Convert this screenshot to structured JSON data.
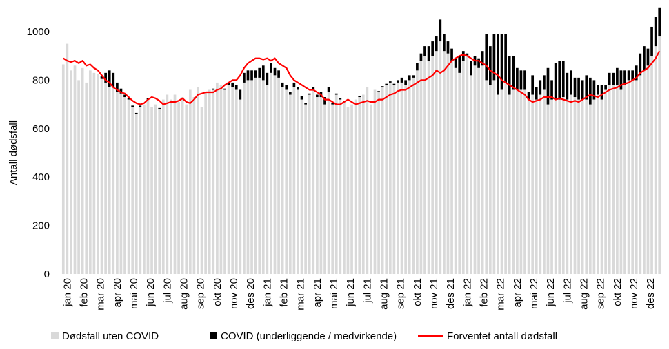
{
  "chart_data": {
    "type": "bar",
    "stacked": true,
    "title": "",
    "xlabel": "",
    "ylabel": "Antall dødsfall",
    "ylim": [
      0,
      1000
    ],
    "yticks": [
      0,
      200,
      400,
      600,
      800,
      1000
    ],
    "grid": false,
    "legend_placement": "bottom",
    "x_tick_labels": [
      "jan 20",
      "feb 20",
      "mar 20",
      "apr 20",
      "mai 20",
      "jun 20",
      "jul 20",
      "aug 20",
      "sep 20",
      "okt 20",
      "nov 20",
      "des 20",
      "jan 21",
      "feb 21",
      "mar 21",
      "apr 21",
      "mai 21",
      "jun 21",
      "jul 21",
      "aug 21",
      "sep 21",
      "okt 21",
      "nov 21",
      "des 21",
      "jan 22",
      "feb 22",
      "mar 22",
      "apr 22",
      "mai 22",
      "jun 22",
      "jul 22",
      "aug 22",
      "sep 22",
      "okt 22",
      "nov 22",
      "des 22"
    ],
    "series": [
      {
        "name": "Dødsfall uten COVID",
        "type": "bar",
        "color": "#d9d9d9",
        "values": [
          865,
          950,
          840,
          860,
          800,
          850,
          790,
          840,
          830,
          825,
          805,
          790,
          770,
          770,
          750,
          745,
          730,
          720,
          690,
          660,
          690,
          700,
          720,
          690,
          700,
          680,
          720,
          740,
          720,
          740,
          710,
          730,
          700,
          760,
          730,
          770,
          690,
          750,
          760,
          760,
          790,
          780,
          760,
          780,
          770,
          760,
          720,
          790,
          800,
          800,
          810,
          810,
          800,
          780,
          830,
          820,
          810,
          770,
          760,
          740,
          770,
          760,
          720,
          700,
          740,
          760,
          730,
          730,
          700,
          750,
          700,
          740,
          720,
          710,
          690,
          700,
          720,
          730,
          740,
          770,
          700,
          760,
          750,
          770,
          780,
          790,
          780,
          790,
          790,
          780,
          800,
          810,
          840,
          880,
          900,
          880,
          900,
          920,
          960,
          920,
          910,
          880,
          850,
          830,
          880,
          900,
          820,
          860,
          850,
          860,
          800,
          780,
          800,
          740,
          760,
          790,
          740,
          760,
          760,
          760,
          760,
          720,
          740,
          720,
          740,
          760,
          700,
          720,
          720,
          720,
          730,
          720,
          740,
          730,
          720,
          720,
          720,
          700,
          720,
          740,
          720,
          760,
          780,
          780,
          780,
          760,
          780,
          800,
          800,
          800,
          820,
          840,
          860,
          900,
          940,
          980
        ]
      },
      {
        "name": "COVID (underliggende / medvirkende)",
        "type": "bar",
        "color": "#000000",
        "values": [
          0,
          0,
          0,
          0,
          0,
          0,
          0,
          0,
          0,
          0,
          10,
          40,
          70,
          60,
          40,
          20,
          10,
          5,
          5,
          5,
          5,
          0,
          5,
          0,
          0,
          5,
          0,
          0,
          0,
          0,
          0,
          0,
          0,
          0,
          0,
          0,
          0,
          0,
          0,
          5,
          0,
          0,
          5,
          10,
          20,
          20,
          40,
          40,
          40,
          40,
          30,
          40,
          60,
          50,
          40,
          30,
          30,
          20,
          20,
          10,
          20,
          10,
          15,
          5,
          5,
          10,
          10,
          20,
          30,
          20,
          5,
          5,
          5,
          5,
          0,
          0,
          0,
          5,
          0,
          0,
          0,
          0,
          5,
          5,
          5,
          5,
          5,
          10,
          20,
          20,
          20,
          10,
          30,
          30,
          40,
          60,
          60,
          60,
          90,
          70,
          50,
          50,
          40,
          70,
          40,
          10,
          60,
          40,
          40,
          60,
          190,
          160,
          190,
          250,
          230,
          200,
          160,
          140,
          90,
          80,
          80,
          30,
          80,
          50,
          60,
          60,
          150,
          80,
          150,
          160,
          150,
          110,
          100,
          80,
          90,
          80,
          100,
          110,
          80,
          40,
          60,
          20,
          50,
          50,
          70,
          80,
          60,
          40,
          40,
          60,
          90,
          100,
          70,
          120,
          120,
          120
        ]
      },
      {
        "name": "Forventet antall dødsfall",
        "type": "line",
        "color": "#ff0000",
        "values": [
          890,
          880,
          875,
          880,
          870,
          880,
          860,
          865,
          850,
          840,
          820,
          800,
          790,
          770,
          760,
          750,
          745,
          730,
          715,
          705,
          700,
          705,
          720,
          730,
          725,
          715,
          700,
          705,
          710,
          710,
          715,
          725,
          710,
          705,
          720,
          740,
          745,
          750,
          750,
          750,
          760,
          765,
          780,
          790,
          800,
          800,
          820,
          850,
          870,
          880,
          890,
          890,
          885,
          890,
          880,
          890,
          870,
          860,
          850,
          820,
          800,
          790,
          780,
          770,
          760,
          760,
          750,
          740,
          720,
          720,
          710,
          700,
          700,
          710,
          720,
          710,
          700,
          705,
          710,
          715,
          710,
          710,
          720,
          720,
          730,
          740,
          745,
          755,
          760,
          760,
          770,
          780,
          790,
          800,
          800,
          810,
          820,
          840,
          830,
          840,
          860,
          880,
          890,
          900,
          905,
          900,
          890,
          880,
          880,
          870,
          860,
          840,
          830,
          820,
          800,
          790,
          780,
          770,
          760,
          750,
          740,
          720,
          710,
          715,
          720,
          730,
          730,
          730,
          720,
          725,
          720,
          715,
          710,
          715,
          710,
          720,
          730,
          740,
          735,
          730,
          740,
          750,
          760,
          765,
          770,
          780,
          785,
          790,
          800,
          810,
          830,
          840,
          850,
          870,
          890,
          920
        ]
      }
    ]
  }
}
